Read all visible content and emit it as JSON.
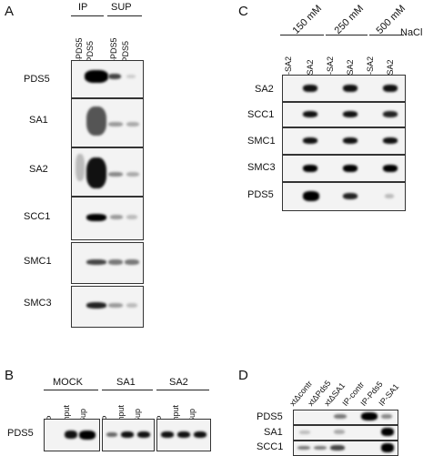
{
  "panelA": {
    "letter": "A",
    "groups": [
      "IP",
      "SUP"
    ],
    "lanes": [
      "P-PDS5",
      "I-PDS5",
      "P-PDS5",
      "I-PDS5"
    ],
    "rows": [
      "PDS5",
      "SA1",
      "SA2",
      "SCC1",
      "SMC1",
      "SMC3"
    ]
  },
  "panelB": {
    "letter": "B",
    "groups": [
      "MOCK",
      "SA1",
      "SA2"
    ],
    "lanes": [
      "IP",
      "Input",
      "Sup"
    ],
    "row": "PDS5"
  },
  "panelC": {
    "letter": "C",
    "salts": [
      "150 mM",
      "250 mM",
      "500 mM"
    ],
    "unit": "NaCl",
    "lanes": [
      "P-SA2",
      "I-SA2"
    ],
    "rows": [
      "SA2",
      "SCC1",
      "SMC1",
      "SMC3",
      "PDS5"
    ]
  },
  "panelD": {
    "letter": "D",
    "lanes": [
      "xtΔcontr",
      "xtΔPds5",
      "xtΔSA1",
      "IP-contr",
      "IP-Pds5",
      "IP-SA1"
    ],
    "rows": [
      "PDS5",
      "SA1",
      "SCC1"
    ]
  }
}
